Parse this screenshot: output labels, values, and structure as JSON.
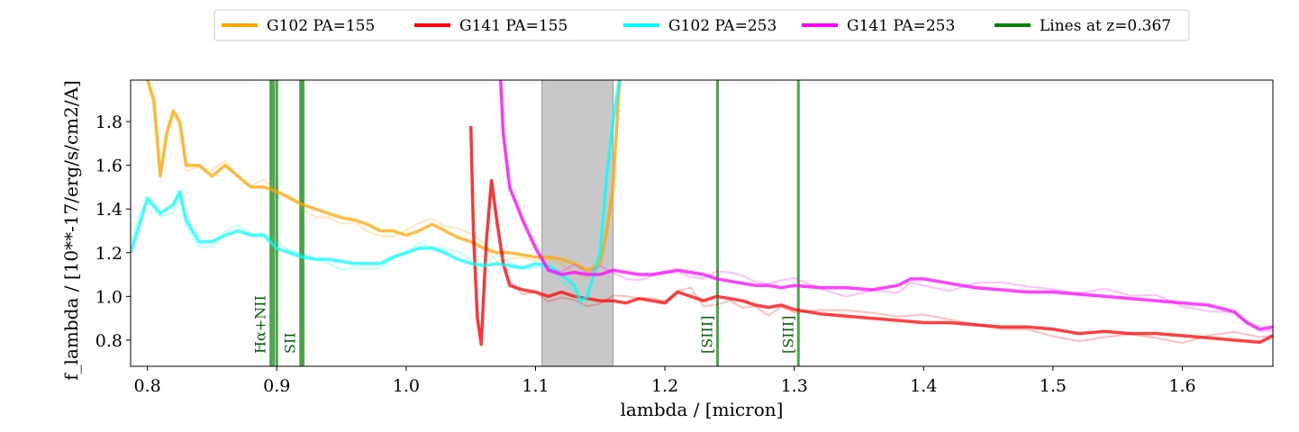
{
  "chart_data": {
    "type": "line",
    "xlabel": "lambda / [micron]",
    "ylabel": "f_lambda / [10**-17/erg/s/cm2/A]",
    "xlim": [
      0.787,
      1.67
    ],
    "ylim": [
      0.68,
      1.99
    ],
    "xticks": [
      0.8,
      0.9,
      1.0,
      1.1,
      1.2,
      1.3,
      1.4,
      1.5,
      1.6
    ],
    "xtick_labels": [
      "0.8",
      "0.9",
      "1.0",
      "1.1",
      "1.2",
      "1.3",
      "1.4",
      "1.5",
      "1.6"
    ],
    "yticks": [
      0.8,
      1.0,
      1.2,
      1.4,
      1.6,
      1.8
    ],
    "ytick_labels": [
      "0.8",
      "1.0",
      "1.2",
      "1.4",
      "1.6",
      "1.8"
    ],
    "grid": false,
    "legend_position": "top-center",
    "shaded_region": {
      "x0": 1.105,
      "x1": 1.16,
      "color": "#c8c8c8"
    },
    "series": [
      {
        "name": "G102 PA=155",
        "color": "#ffa500",
        "x": [
          0.8,
          0.805,
          0.81,
          0.815,
          0.82,
          0.825,
          0.83,
          0.84,
          0.85,
          0.86,
          0.87,
          0.88,
          0.89,
          0.9,
          0.91,
          0.92,
          0.93,
          0.94,
          0.95,
          0.96,
          0.97,
          0.98,
          0.99,
          1.0,
          1.01,
          1.02,
          1.03,
          1.04,
          1.05,
          1.06,
          1.07,
          1.08,
          1.09,
          1.1,
          1.11,
          1.12,
          1.13,
          1.14,
          1.15,
          1.155,
          1.16,
          1.165
        ],
        "y": [
          1.99,
          1.9,
          1.55,
          1.75,
          1.85,
          1.8,
          1.6,
          1.6,
          1.55,
          1.6,
          1.55,
          1.5,
          1.5,
          1.48,
          1.45,
          1.42,
          1.4,
          1.38,
          1.36,
          1.35,
          1.33,
          1.3,
          1.3,
          1.28,
          1.3,
          1.33,
          1.3,
          1.27,
          1.25,
          1.22,
          1.2,
          1.2,
          1.19,
          1.18,
          1.18,
          1.17,
          1.15,
          1.12,
          1.15,
          1.3,
          1.5,
          1.99
        ]
      },
      {
        "name": "G141 PA=155",
        "color": "#ff0000",
        "x": [
          1.05,
          1.052,
          1.055,
          1.058,
          1.062,
          1.066,
          1.07,
          1.075,
          1.08,
          1.09,
          1.1,
          1.11,
          1.12,
          1.13,
          1.14,
          1.15,
          1.16,
          1.17,
          1.18,
          1.19,
          1.2,
          1.21,
          1.22,
          1.23,
          1.24,
          1.25,
          1.26,
          1.27,
          1.28,
          1.29,
          1.3,
          1.32,
          1.34,
          1.36,
          1.38,
          1.4,
          1.42,
          1.44,
          1.46,
          1.48,
          1.5,
          1.52,
          1.54,
          1.56,
          1.58,
          1.6,
          1.62,
          1.64,
          1.66,
          1.67
        ],
        "y": [
          1.78,
          1.3,
          0.9,
          0.78,
          1.25,
          1.53,
          1.35,
          1.15,
          1.05,
          1.03,
          1.02,
          1.0,
          1.02,
          1.0,
          0.99,
          0.98,
          0.98,
          0.97,
          0.99,
          0.98,
          0.97,
          1.02,
          1.0,
          0.98,
          1.0,
          0.99,
          0.98,
          0.96,
          0.95,
          0.96,
          0.94,
          0.92,
          0.91,
          0.9,
          0.89,
          0.88,
          0.88,
          0.87,
          0.86,
          0.86,
          0.85,
          0.83,
          0.84,
          0.83,
          0.83,
          0.82,
          0.81,
          0.8,
          0.79,
          0.82
        ]
      },
      {
        "name": "G102 PA=253",
        "color": "#00ffff",
        "x": [
          0.787,
          0.795,
          0.8,
          0.81,
          0.82,
          0.825,
          0.83,
          0.84,
          0.85,
          0.86,
          0.87,
          0.88,
          0.89,
          0.9,
          0.91,
          0.92,
          0.93,
          0.94,
          0.95,
          0.96,
          0.97,
          0.98,
          0.99,
          1.0,
          1.01,
          1.02,
          1.03,
          1.04,
          1.05,
          1.06,
          1.07,
          1.08,
          1.09,
          1.1,
          1.11,
          1.12,
          1.13,
          1.135,
          1.14,
          1.15,
          1.155,
          1.16,
          1.165
        ],
        "y": [
          1.2,
          1.35,
          1.45,
          1.38,
          1.42,
          1.48,
          1.35,
          1.25,
          1.25,
          1.28,
          1.3,
          1.28,
          1.28,
          1.22,
          1.2,
          1.18,
          1.17,
          1.17,
          1.16,
          1.15,
          1.15,
          1.15,
          1.18,
          1.2,
          1.22,
          1.22,
          1.2,
          1.17,
          1.15,
          1.14,
          1.15,
          1.14,
          1.13,
          1.15,
          1.14,
          1.1,
          1.05,
          0.98,
          1.0,
          1.2,
          1.55,
          1.8,
          1.99
        ]
      },
      {
        "name": "G141 PA=253",
        "color": "#ff00ff",
        "x": [
          1.073,
          1.075,
          1.08,
          1.09,
          1.1,
          1.11,
          1.12,
          1.13,
          1.14,
          1.15,
          1.16,
          1.17,
          1.18,
          1.19,
          1.2,
          1.21,
          1.22,
          1.23,
          1.24,
          1.25,
          1.26,
          1.27,
          1.28,
          1.29,
          1.3,
          1.32,
          1.34,
          1.36,
          1.38,
          1.39,
          1.4,
          1.42,
          1.44,
          1.46,
          1.48,
          1.5,
          1.52,
          1.54,
          1.56,
          1.58,
          1.6,
          1.62,
          1.64,
          1.65,
          1.66,
          1.67
        ],
        "y": [
          1.99,
          1.75,
          1.5,
          1.35,
          1.22,
          1.12,
          1.1,
          1.11,
          1.1,
          1.1,
          1.12,
          1.11,
          1.1,
          1.1,
          1.11,
          1.12,
          1.11,
          1.1,
          1.08,
          1.07,
          1.06,
          1.05,
          1.05,
          1.04,
          1.05,
          1.04,
          1.04,
          1.03,
          1.05,
          1.08,
          1.08,
          1.06,
          1.04,
          1.03,
          1.02,
          1.02,
          1.01,
          1.0,
          0.99,
          0.98,
          0.97,
          0.96,
          0.93,
          0.88,
          0.85,
          0.86
        ]
      }
    ],
    "emission_lines": {
      "name": "Lines at z=0.367",
      "color": "#007f00",
      "lines": [
        {
          "x": 0.8954,
          "label": "Hα+NII"
        },
        {
          "x": 0.8975,
          "label": ""
        },
        {
          "x": 0.9,
          "label": ""
        },
        {
          "x": 0.9184,
          "label": "SII"
        },
        {
          "x": 0.9203,
          "label": ""
        },
        {
          "x": 1.2407,
          "label": "[SIII]"
        },
        {
          "x": 1.3032,
          "label": "[SIII]"
        }
      ]
    }
  }
}
